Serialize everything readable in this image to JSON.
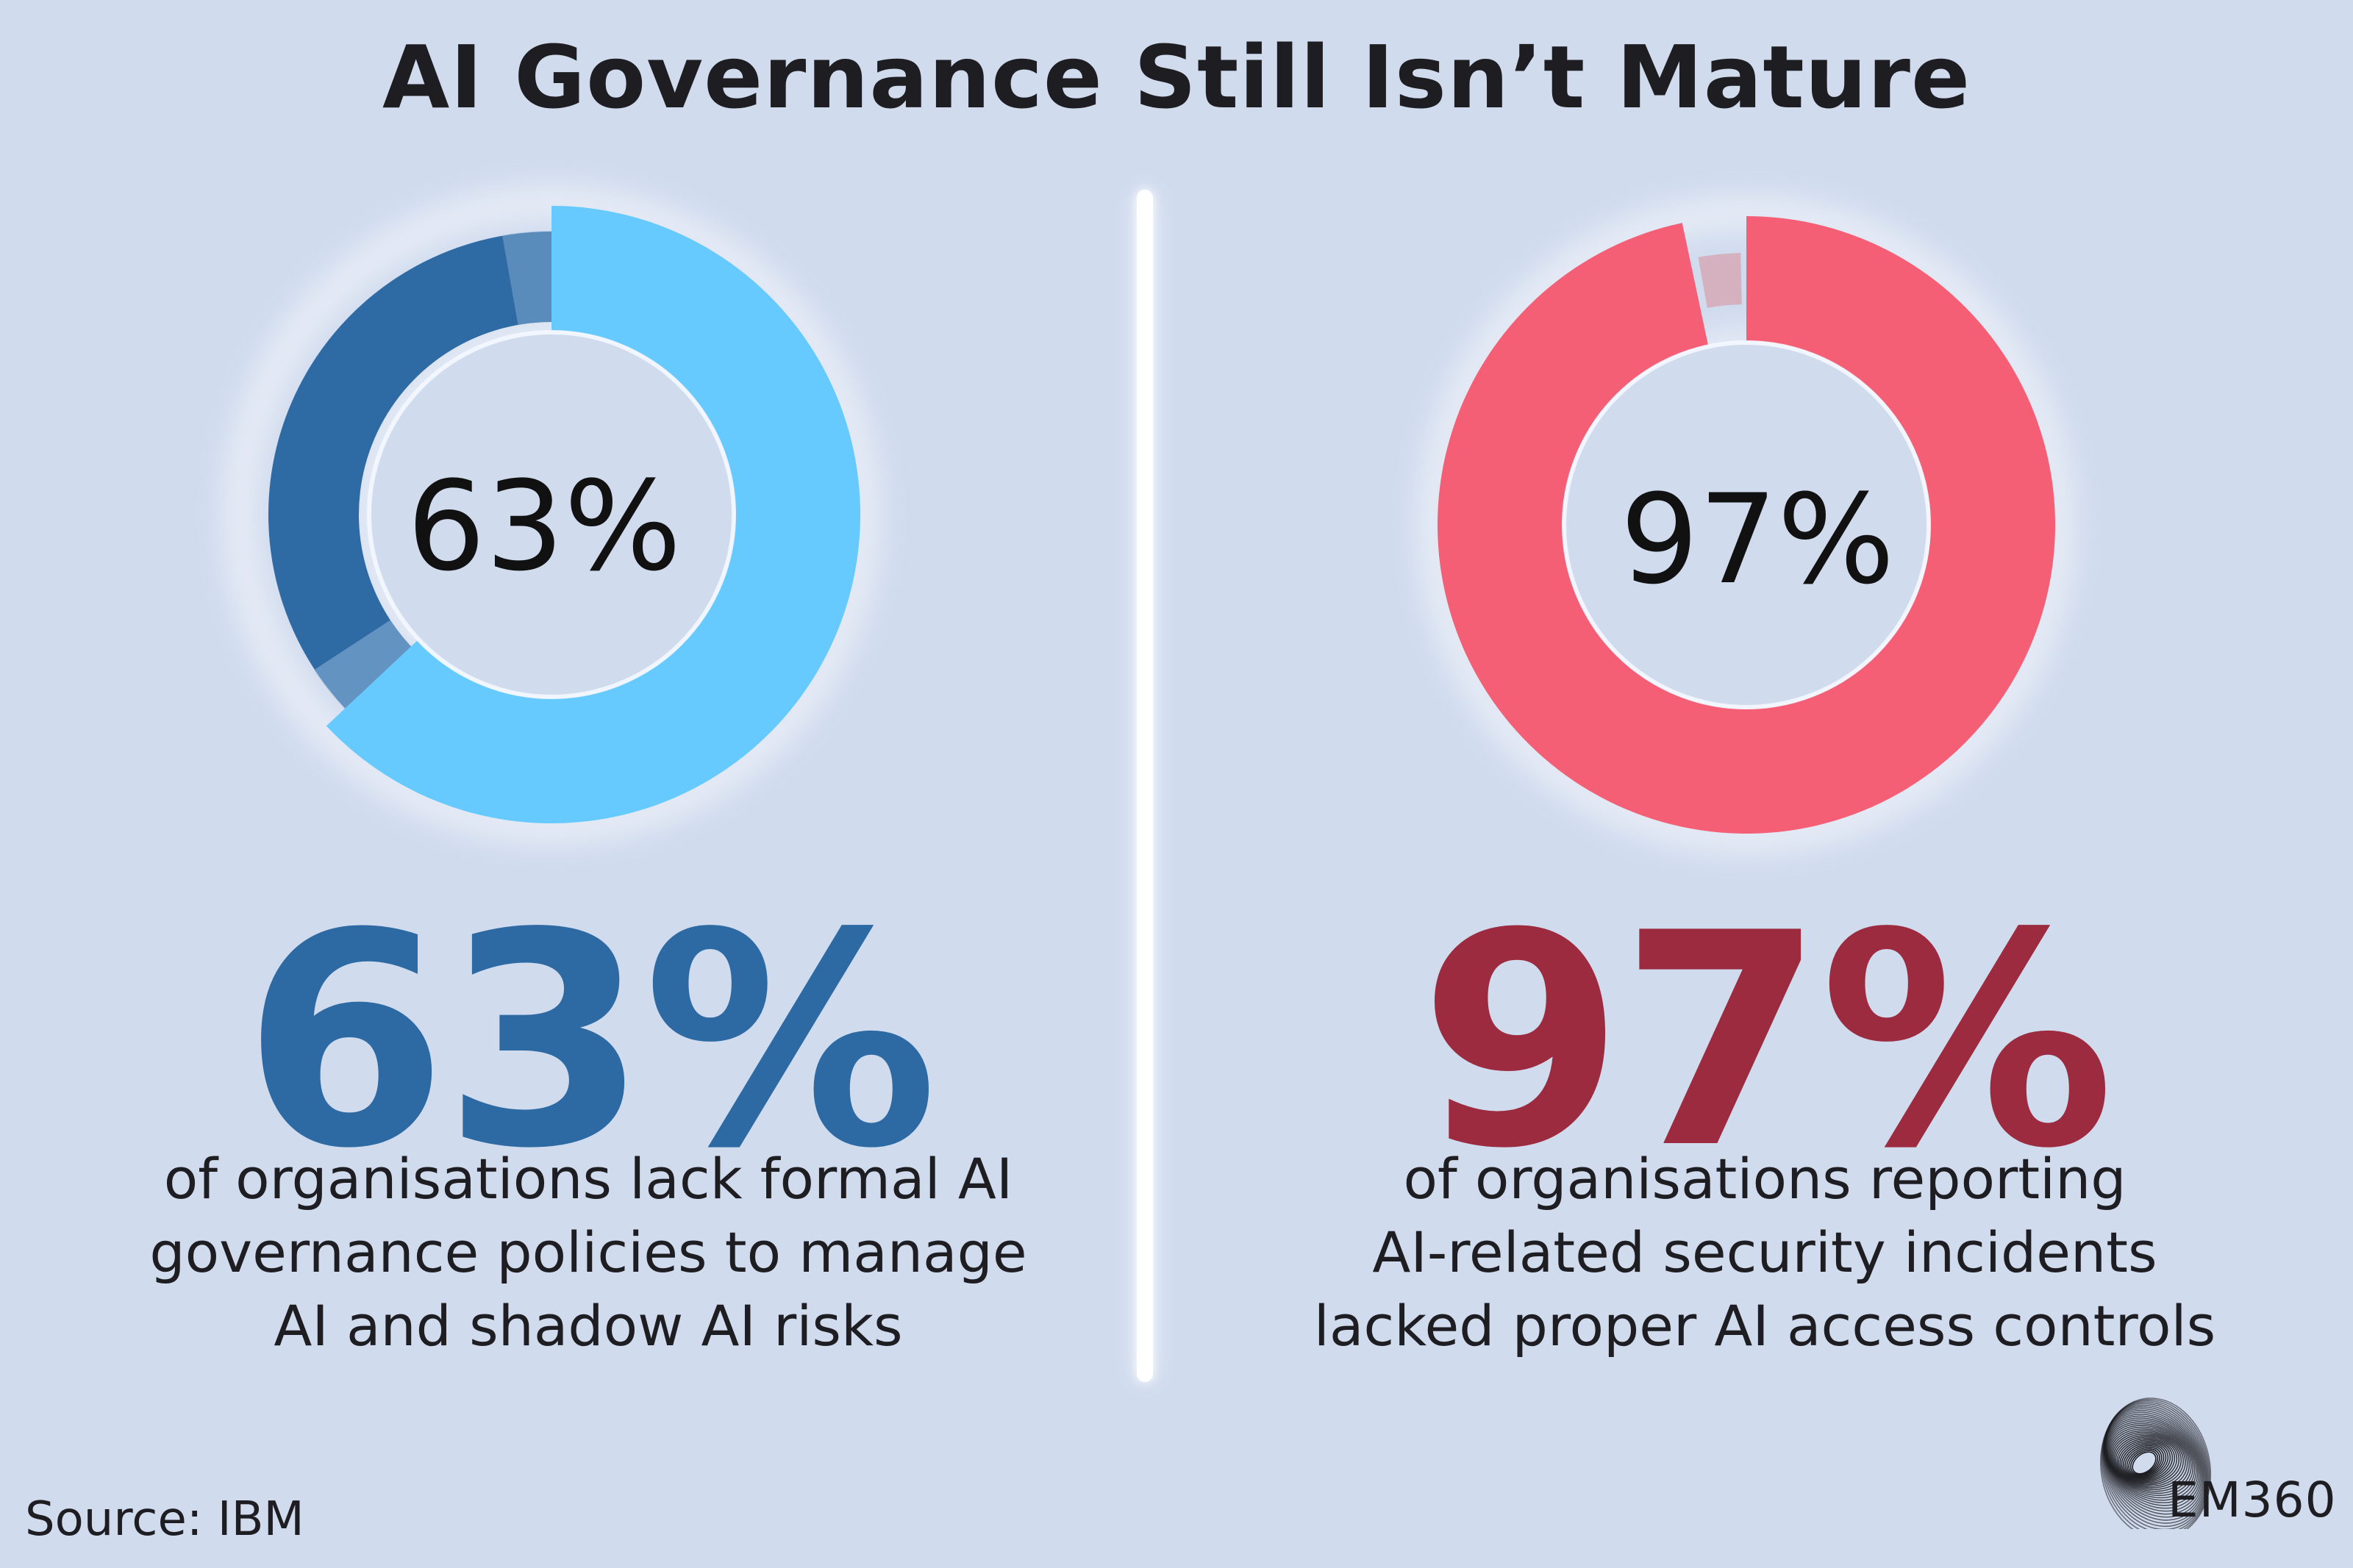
{
  "title": "AI Governance Still Isn’t Mature",
  "source": "Source: IBM",
  "logo_text": "EM360",
  "logo_icon": "spiral-fan-logo-icon",
  "colors": {
    "background": "#d0dbee",
    "left_light": "#66caff",
    "left_dark": "#2e6aa3",
    "left_value": "#2d6aa3",
    "right_main": "#f45f76",
    "right_value": "#9c2b40",
    "right_remainder": "#d7a0ab",
    "divider": "#ffffff"
  },
  "chart_data": [
    {
      "type": "pie",
      "variant": "donut",
      "center_label": "63%",
      "value_label": "63%",
      "description": [
        "of organisations lack formal AI",
        "governance policies to manage",
        "AI and shadow AI risks"
      ],
      "slices": [
        {
          "value": 63,
          "color": "#66caff"
        },
        {
          "value": 37,
          "color": "#2e6aa3"
        }
      ]
    },
    {
      "type": "pie",
      "variant": "donut",
      "center_label": "97%",
      "value_label": "97%",
      "description": [
        "of organisations reporting",
        "AI-related security incidents",
        "lacked proper AI access controls"
      ],
      "slices": [
        {
          "value": 97,
          "color": "#f45f76"
        },
        {
          "value": 3,
          "color": "#d7a0ab"
        }
      ]
    }
  ]
}
